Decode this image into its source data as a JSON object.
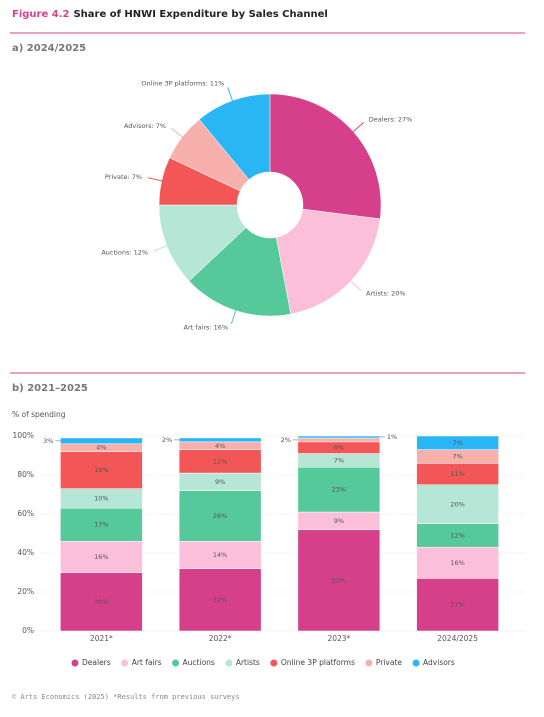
{
  "figure": {
    "number": "Figure 4.2",
    "title": "Share of HNWI Expenditure by Sales Channel"
  },
  "footer": "© Arts Economics (2025) *Results from previous surveys",
  "chart_data": [
    {
      "type": "pie",
      "subtitle": "a) 2024/2025",
      "values": [
        27,
        20,
        16,
        12,
        7,
        7,
        11
      ],
      "value_labels": [
        "Dealers: 27%",
        "Artists: 20%",
        "Art fairs: 16%",
        "Auctions: 12%",
        "Private: 7%",
        "Advisors: 7%",
        "Online 3P platforms: 11%"
      ],
      "colors": [
        "#d6408a",
        "#fbbfda",
        "#55c99a",
        "#b6e6d5",
        "#f25656",
        "#f7b0ac",
        "#2ab5f5"
      ]
    },
    {
      "type": "bar",
      "stacked": true,
      "subtitle": "b) 2021–2025",
      "y_label": "% of spending",
      "grid": true,
      "legend": "bottom",
      "categories": [
        "2021*",
        "2022*",
        "2023*",
        "2024/2025"
      ],
      "ylim": [
        0,
        100
      ],
      "yticks": [
        {
          "value": 0,
          "label": "0%"
        },
        {
          "value": 20,
          "label": "20%"
        },
        {
          "value": 40,
          "label": "40%"
        },
        {
          "value": 60,
          "label": "60%"
        },
        {
          "value": 80,
          "label": "80%"
        },
        {
          "value": 100,
          "label": "100%"
        }
      ],
      "series": [
        {
          "name": "Dealers",
          "color": "#d6408a",
          "values": [
            30,
            32,
            52,
            27
          ],
          "value_labels": [
            "30%",
            "32%",
            "52%",
            "27%"
          ]
        },
        {
          "name": "Art fairs",
          "color": "#fbbfda",
          "values": [
            16,
            14,
            9,
            16
          ],
          "value_labels": [
            "16%",
            "14%",
            "9%",
            "16%"
          ]
        },
        {
          "name": "Auctions",
          "color": "#55c99a",
          "values": [
            17,
            26,
            23,
            12
          ],
          "value_labels": [
            "17%",
            "26%",
            "23%",
            "12%"
          ]
        },
        {
          "name": "Artists",
          "color": "#b6e6d5",
          "values": [
            10,
            9,
            7,
            20
          ],
          "value_labels": [
            "10%",
            "9%",
            "7%",
            "20%"
          ]
        },
        {
          "name": "Online 3P platforms",
          "color": "#f25656",
          "values": [
            19,
            12,
            6,
            11
          ],
          "value_labels": [
            "19%",
            "12%",
            "6%",
            "11%"
          ]
        },
        {
          "name": "Private",
          "color": "#f7b0ac",
          "values": [
            4,
            4,
            2,
            7
          ],
          "value_labels": [
            "4%",
            "4%",
            "2%",
            "7%"
          ]
        },
        {
          "name": "Advisors",
          "color": "#2ab5f5",
          "values": [
            3,
            2,
            1,
            7
          ],
          "value_labels": [
            "3%",
            "2%",
            "1%",
            "7%"
          ]
        }
      ]
    }
  ]
}
